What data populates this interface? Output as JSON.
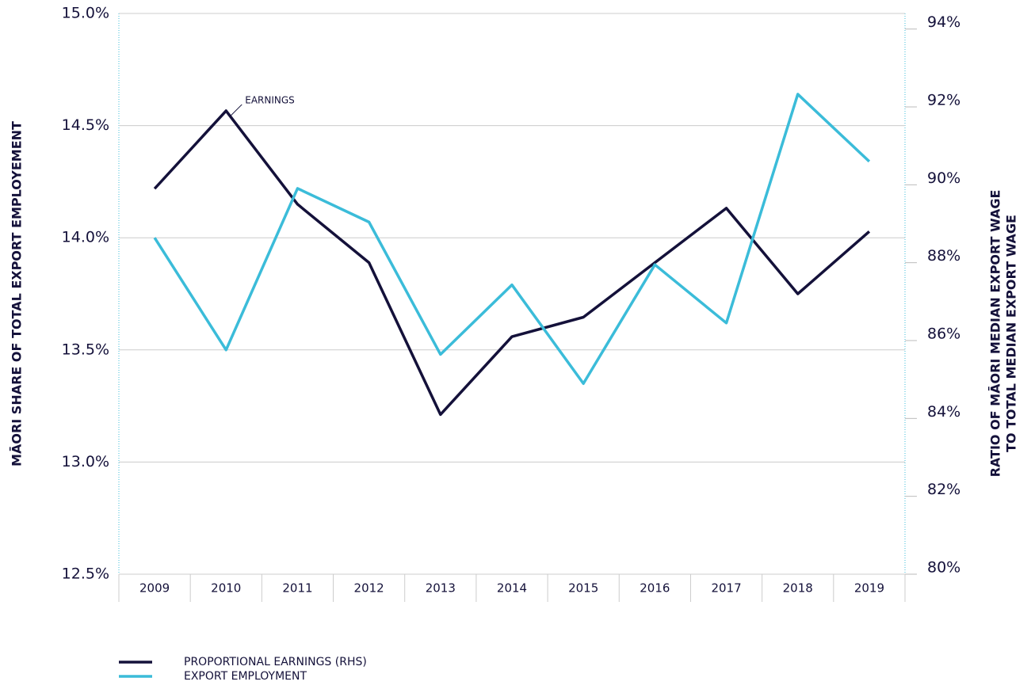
{
  "chart_data": {
    "type": "line",
    "categories": [
      "2009",
      "2010",
      "2011",
      "2012",
      "2013",
      "2014",
      "2015",
      "2016",
      "2017",
      "2018",
      "2019"
    ],
    "series": [
      {
        "name": "PROPORTIONAL EARNINGS (RHS)",
        "color": "#14113a",
        "axis": "y2",
        "values": [
          89.9,
          91.9,
          89.5,
          88.0,
          84.1,
          86.1,
          86.6,
          88.0,
          89.4,
          87.2,
          88.8
        ]
      },
      {
        "name": "EXPORT EMPLOYMENT",
        "color": "#3bbcd9",
        "values": [
          14.0,
          13.5,
          14.22,
          14.07,
          13.48,
          13.79,
          13.35,
          13.88,
          13.62,
          14.64,
          14.34
        ]
      }
    ],
    "ylabel": "MĀORI SHARE OF TOTAL EXPORT EMPLOYEMENT",
    "y2label": [
      "RATIO OF MĀORI MEDIAN EXPORT WAGE",
      "TO TOTAL MEDIAN EXPORT WAGE"
    ],
    "annotation": "EARNINGS",
    "ylim": [
      12.5,
      15.0
    ],
    "yticks": [
      {
        "value": 12.5,
        "label": "12.5%"
      },
      {
        "value": 13.0,
        "label": "13.0%"
      },
      {
        "value": 13.5,
        "label": "13.5%"
      },
      {
        "value": 14.0,
        "label": "14.0%"
      },
      {
        "value": 14.5,
        "label": "14.5%"
      },
      {
        "value": 15.0,
        "label": "15.0%"
      }
    ],
    "y2lim": [
      80,
      94.4
    ],
    "y2ticks": [
      {
        "value": 80,
        "label": "80%"
      },
      {
        "value": 82,
        "label": "82%"
      },
      {
        "value": 84,
        "label": "84%"
      },
      {
        "value": 86,
        "label": "86%"
      },
      {
        "value": 88,
        "label": "88%"
      },
      {
        "value": 90,
        "label": "90%"
      },
      {
        "value": 92,
        "label": "92%"
      },
      {
        "value": 94,
        "label": "94%"
      }
    ],
    "grid": true
  }
}
